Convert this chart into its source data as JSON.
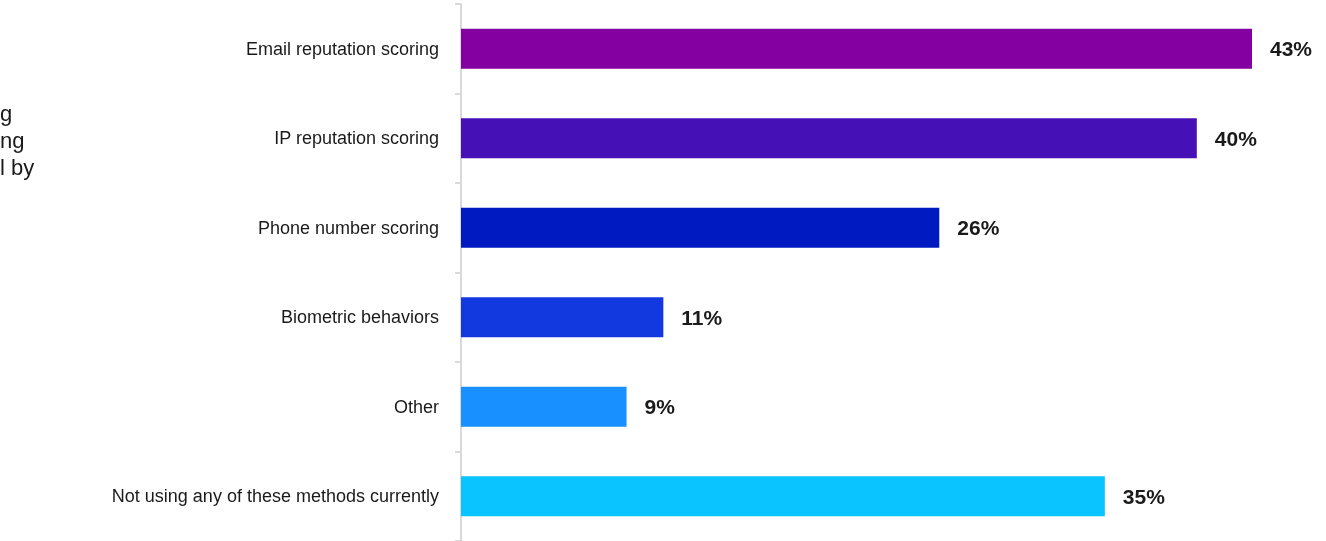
{
  "chart_data": {
    "type": "bar",
    "orientation": "horizontal",
    "categories": [
      "Email reputation scoring",
      "IP reputation scoring",
      "Phone number scoring",
      "Biometric behaviors",
      "Other",
      "Not using any of these methods currently"
    ],
    "values": [
      43,
      40,
      26,
      11,
      9,
      35
    ],
    "colors": [
      "#8500a0",
      "#4510b5",
      "#001ac2",
      "#1239e0",
      "#1890ff",
      "#0ac4ff"
    ],
    "value_labels": [
      "43%",
      "40%",
      "26%",
      "11%",
      "9%",
      "35%"
    ],
    "tick_labels": "y",
    "annotations": [
      "g\nng\nl by"
    ]
  }
}
